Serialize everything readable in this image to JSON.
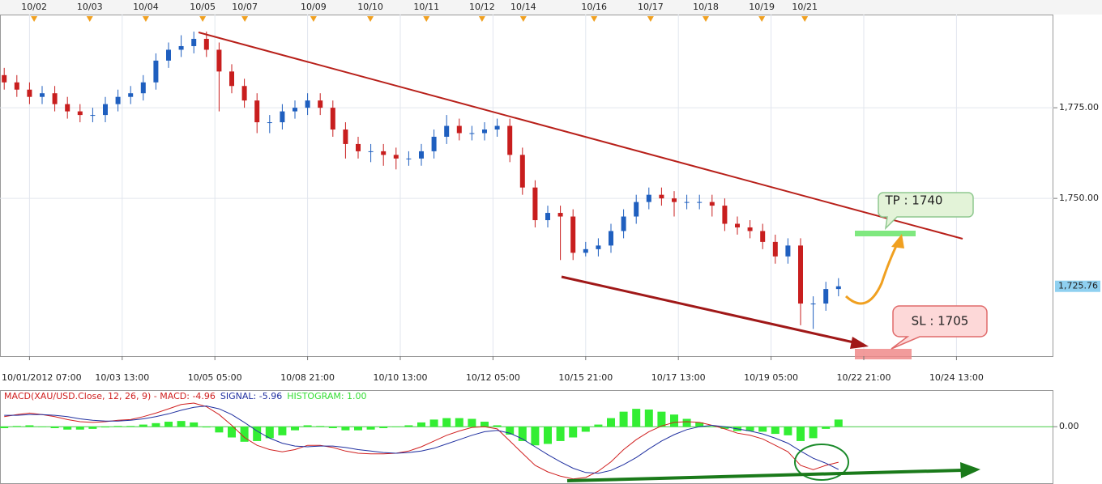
{
  "chart_data": [
    {
      "type": "candlestick",
      "x": [
        -6,
        -3,
        0,
        3,
        6,
        9,
        12,
        15,
        18,
        21,
        24,
        27,
        30,
        33,
        36,
        39,
        42,
        45,
        48,
        51,
        54,
        57,
        60,
        63,
        66,
        69,
        72,
        75,
        78,
        81,
        84,
        87,
        90,
        93,
        96,
        99,
        102,
        105,
        108,
        111,
        114,
        117,
        120,
        123,
        126,
        129,
        132,
        135,
        138,
        141,
        144,
        147,
        150,
        153,
        156,
        159,
        162,
        165,
        168,
        171,
        174,
        177,
        180,
        183,
        186,
        189,
        192
      ],
      "open": [
        1784,
        1782,
        1780,
        1778,
        1779,
        1776,
        1774,
        1773,
        1773,
        1776,
        1778,
        1779,
        1782,
        1788,
        1791,
        1792,
        1794,
        1791,
        1785,
        1781,
        1777,
        1771,
        1771,
        1774,
        1775,
        1777,
        1775,
        1769,
        1765,
        1763,
        1763,
        1762,
        1761,
        1761,
        1763,
        1767,
        1770,
        1768,
        1768,
        1769,
        1770,
        1762,
        1753,
        1744,
        1746,
        1745,
        1735,
        1736,
        1737,
        1741,
        1745,
        1749,
        1751,
        1750,
        1749,
        1749,
        1749,
        1748,
        1743,
        1742,
        1741,
        1738,
        1734,
        1737,
        1721,
        1721,
        1725
      ],
      "high": [
        1786,
        1784,
        1782,
        1781,
        1781,
        1778,
        1776,
        1775,
        1778,
        1780,
        1781,
        1784,
        1790,
        1793,
        1795,
        1796,
        1796,
        1793,
        1787,
        1783,
        1779,
        1773,
        1776,
        1777,
        1779,
        1779,
        1777,
        1771,
        1767,
        1765,
        1765,
        1764,
        1763,
        1765,
        1769,
        1773,
        1772,
        1770,
        1771,
        1772,
        1772,
        1764,
        1755,
        1748,
        1748,
        1747,
        1738,
        1739,
        1743,
        1747,
        1751,
        1753,
        1753,
        1752,
        1751,
        1751,
        1751,
        1750,
        1745,
        1744,
        1743,
        1740,
        1739,
        1739,
        1723,
        1727,
        1728
      ],
      "low": [
        1780,
        1778,
        1776,
        1776,
        1774,
        1772,
        1771,
        1771,
        1771,
        1774,
        1776,
        1777,
        1780,
        1786,
        1789,
        1790,
        1789,
        1774,
        1779,
        1775,
        1768,
        1768,
        1769,
        1772,
        1773,
        1773,
        1767,
        1761,
        1761,
        1760,
        1759,
        1758,
        1759,
        1759,
        1761,
        1765,
        1766,
        1766,
        1766,
        1767,
        1760,
        1751,
        1742,
        1742,
        1733,
        1733,
        1734,
        1734,
        1735,
        1739,
        1743,
        1747,
        1748,
        1745,
        1747,
        1747,
        1745,
        1741,
        1740,
        1739,
        1736,
        1732,
        1732,
        1715,
        1714,
        1719,
        1723
      ],
      "close": [
        1782,
        1780,
        1778,
        1779,
        1776,
        1774,
        1773,
        1773,
        1776,
        1778,
        1779,
        1782,
        1788,
        1791,
        1792,
        1794,
        1791,
        1785,
        1781,
        1777,
        1771,
        1771,
        1774,
        1775,
        1777,
        1775,
        1769,
        1765,
        1763,
        1763,
        1762,
        1761,
        1761,
        1763,
        1767,
        1770,
        1768,
        1768,
        1769,
        1770,
        1762,
        1753,
        1744,
        1746,
        1745,
        1735,
        1736,
        1737,
        1741,
        1745,
        1749,
        1751,
        1750,
        1749,
        1749,
        1749,
        1748,
        1743,
        1742,
        1741,
        1738,
        1734,
        1737,
        1721,
        1721,
        1725,
        1725.76
      ],
      "up_color": "#1f5fbf",
      "down_color": "#c81e1e",
      "xlim": [
        -7,
        243
      ],
      "xticks": [
        {
          "value": 0,
          "label": "10/01/2012 07:00"
        },
        {
          "value": 22,
          "label": "10/03 13:00"
        },
        {
          "value": 44,
          "label": "10/05 05:00"
        },
        {
          "value": 66,
          "label": "10/08 21:00"
        },
        {
          "value": 88,
          "label": "10/10 13:00"
        },
        {
          "value": 110,
          "label": "10/12 05:00"
        },
        {
          "value": 132,
          "label": "10/15 21:00"
        },
        {
          "value": 154,
          "label": "10/17 13:00"
        },
        {
          "value": 176,
          "label": "10/19 05:00"
        },
        {
          "value": 198,
          "label": "10/22 21:00"
        },
        {
          "value": 220,
          "label": "10/24 13:00"
        }
      ],
      "date_ticks": [
        {
          "value": 1.1,
          "label": "10/02"
        },
        {
          "value": 14.3,
          "label": "10/03"
        },
        {
          "value": 27.6,
          "label": "10/04"
        },
        {
          "value": 41.1,
          "label": "10/05"
        },
        {
          "value": 51.1,
          "label": "10/07"
        },
        {
          "value": 67.4,
          "label": "10/09"
        },
        {
          "value": 80.9,
          "label": "10/10"
        },
        {
          "value": 94.2,
          "label": "10/11"
        },
        {
          "value": 107.4,
          "label": "10/12"
        },
        {
          "value": 117.2,
          "label": "10/14"
        },
        {
          "value": 134,
          "label": "10/16"
        },
        {
          "value": 147.4,
          "label": "10/17"
        },
        {
          "value": 160.5,
          "label": "10/18"
        },
        {
          "value": 173.8,
          "label": "10/19"
        },
        {
          "value": 184,
          "label": "10/21"
        }
      ],
      "ylim": [
        1706.5,
        1800.7
      ],
      "yticks": [
        {
          "value": 1750,
          "label": "1,750.00"
        },
        {
          "value": 1775,
          "label": "1,775.00"
        }
      ],
      "last_price": {
        "value": 1725.76,
        "label": "1,725.76"
      },
      "grid": true,
      "annotations": {
        "tp": "TP : 1740",
        "sl": "SL : 1705"
      }
    },
    {
      "type": "macd",
      "x": [
        -6,
        -3,
        0,
        3,
        6,
        9,
        12,
        15,
        18,
        21,
        24,
        27,
        30,
        33,
        36,
        39,
        42,
        45,
        48,
        51,
        54,
        57,
        60,
        63,
        66,
        69,
        72,
        75,
        78,
        81,
        84,
        87,
        90,
        93,
        96,
        99,
        102,
        105,
        108,
        111,
        114,
        117,
        120,
        123,
        126,
        129,
        132,
        135,
        138,
        141,
        144,
        147,
        150,
        153,
        156,
        159,
        162,
        165,
        168,
        171,
        174,
        177,
        180,
        183,
        186,
        189,
        192
      ],
      "xlim": [
        -7,
        243
      ],
      "ylim": [
        -8,
        5
      ],
      "yticks": [
        {
          "value": 0,
          "label": "0.00"
        }
      ],
      "series": [
        {
          "label": "MACD(XAU/USD.Close, 12, 26, 9) - MACD: -4.96",
          "color": "#d02020",
          "values": [
            1.4,
            1.7,
            1.9,
            1.7,
            1.4,
            1.0,
            0.7,
            0.6,
            0.7,
            0.9,
            1.0,
            1.4,
            1.9,
            2.5,
            3.1,
            3.3,
            2.8,
            1.7,
            0.2,
            -1.5,
            -2.6,
            -3.2,
            -3.5,
            -3.2,
            -2.6,
            -2.6,
            -2.9,
            -3.4,
            -3.7,
            -3.8,
            -3.8,
            -3.7,
            -3.4,
            -2.8,
            -2.0,
            -1.2,
            -0.6,
            -0.1,
            0.0,
            -0.3,
            -2.0,
            -3.7,
            -5.4,
            -6.3,
            -6.9,
            -7.3,
            -7.1,
            -6.2,
            -4.9,
            -3.2,
            -1.8,
            -0.7,
            0.1,
            0.6,
            0.7,
            0.6,
            0.2,
            -0.3,
            -0.9,
            -1.2,
            -1.7,
            -2.6,
            -3.5,
            -5.4,
            -6.0,
            -5.4,
            -4.96
          ]
        },
        {
          "label": "SIGNAL: -5.96",
          "color": "#2030a0",
          "values": [
            1.6,
            1.6,
            1.7,
            1.7,
            1.6,
            1.4,
            1.1,
            0.9,
            0.8,
            0.8,
            0.9,
            1.1,
            1.4,
            1.8,
            2.3,
            2.7,
            2.9,
            2.5,
            1.7,
            0.6,
            -0.6,
            -1.6,
            -2.3,
            -2.7,
            -2.8,
            -2.7,
            -2.7,
            -2.9,
            -3.2,
            -3.4,
            -3.6,
            -3.7,
            -3.6,
            -3.4,
            -3.0,
            -2.4,
            -1.8,
            -1.2,
            -0.7,
            -0.5,
            -0.9,
            -1.7,
            -2.8,
            -3.9,
            -4.9,
            -5.8,
            -6.4,
            -6.5,
            -6.1,
            -5.3,
            -4.3,
            -3.1,
            -2.0,
            -1.1,
            -0.4,
            0.0,
            0.2,
            0.0,
            -0.3,
            -0.6,
            -1.0,
            -1.6,
            -2.3,
            -3.4,
            -4.4,
            -5.1,
            -5.96
          ]
        },
        {
          "label": "HISTOGRAM: 1.00",
          "color": "#33ee33",
          "values": [
            -0.2,
            0.1,
            0.2,
            0.0,
            -0.2,
            -0.4,
            -0.4,
            -0.3,
            -0.1,
            0.1,
            0.1,
            0.3,
            0.5,
            0.7,
            0.8,
            0.6,
            -0.1,
            -0.8,
            -1.5,
            -2.1,
            -2.0,
            -1.6,
            -1.2,
            -0.5,
            0.2,
            0.1,
            -0.2,
            -0.5,
            -0.5,
            -0.4,
            -0.2,
            0.0,
            0.2,
            0.6,
            1.0,
            1.2,
            1.2,
            1.1,
            0.7,
            0.2,
            -1.1,
            -2.0,
            -2.6,
            -2.4,
            -2.0,
            -1.5,
            -0.7,
            0.3,
            1.2,
            2.1,
            2.5,
            2.4,
            2.1,
            1.7,
            1.1,
            0.6,
            0.0,
            -0.3,
            -0.6,
            -0.6,
            -0.7,
            -1.0,
            -1.2,
            -2.0,
            -1.6,
            -0.3,
            1.0
          ]
        }
      ],
      "zero_color": "#44cc44"
    }
  ]
}
